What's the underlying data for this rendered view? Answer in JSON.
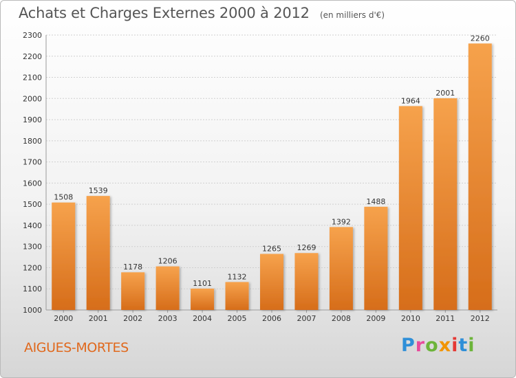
{
  "header": {
    "title": "Achats et Charges Externes 2000 à 2012",
    "subtitle": "(en milliers d'€)"
  },
  "footer": {
    "city": "AIGUES-MORTES",
    "logo_text": "Proxiti"
  },
  "colors": {
    "bar_light": "#f6a24c",
    "bar_dark": "#d66d1a",
    "city_text": "#e0681c"
  },
  "chart_data": {
    "type": "bar",
    "categories": [
      "2000",
      "2001",
      "2002",
      "2003",
      "2004",
      "2005",
      "2006",
      "2007",
      "2008",
      "2009",
      "2010",
      "2011",
      "2012"
    ],
    "values": [
      1508,
      1539,
      1178,
      1206,
      1101,
      1132,
      1265,
      1269,
      1392,
      1488,
      1964,
      2001,
      2260
    ],
    "title": "Achats et Charges Externes 2000 à 2012",
    "subtitle": "(en milliers d'€)",
    "ylim": [
      1000,
      2300
    ],
    "yticks": [
      1000,
      1100,
      1200,
      1300,
      1400,
      1500,
      1600,
      1700,
      1800,
      1900,
      2000,
      2100,
      2200,
      2300
    ],
    "grid": true,
    "data_labels": true
  }
}
